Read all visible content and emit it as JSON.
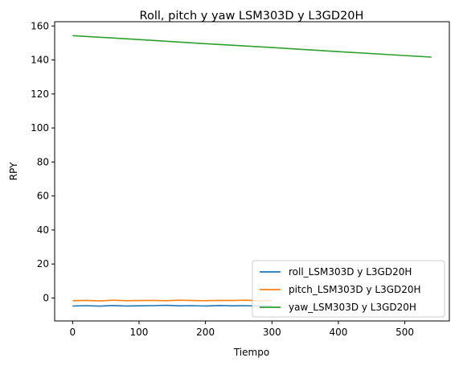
{
  "chart_data": {
    "type": "line",
    "title": "Roll, pitch y yaw LSM303D y L3GD20H",
    "xlabel": "Tiempo",
    "ylabel": "RPY",
    "xlim": [
      -27,
      567
    ],
    "ylim": [
      -13.5,
      162.5
    ],
    "xticks": [
      0,
      100,
      200,
      300,
      400,
      500
    ],
    "yticks": [
      0,
      20,
      40,
      60,
      80,
      100,
      120,
      140,
      160
    ],
    "legend_position": "lower right",
    "series": [
      {
        "name": "roll_LSM303D y L3GD20H",
        "color": "#1f77b4",
        "x": [
          0,
          20,
          40,
          60,
          80,
          100,
          120,
          140,
          160,
          180,
          200,
          220,
          240,
          260,
          280,
          300
        ],
        "values": [
          -4.7,
          -4.5,
          -4.8,
          -4.4,
          -4.7,
          -4.6,
          -4.5,
          -4.3,
          -4.6,
          -4.5,
          -4.7,
          -4.4,
          -4.6,
          -4.5,
          -4.7,
          -4.6
        ]
      },
      {
        "name": "pitch_LSM303D y L3GD20H",
        "color": "#ff7f0e",
        "x": [
          0,
          20,
          40,
          60,
          80,
          100,
          120,
          140,
          160,
          180,
          200,
          220,
          240,
          260,
          280,
          300
        ],
        "values": [
          -1.6,
          -1.4,
          -1.7,
          -1.3,
          -1.6,
          -1.5,
          -1.4,
          -1.6,
          -1.3,
          -1.5,
          -1.6,
          -1.4,
          -1.5,
          -1.3,
          -1.6,
          -1.5
        ]
      },
      {
        "name": "yaw_LSM303D y L3GD20H",
        "color": "#2ca02c",
        "x": [
          0,
          100,
          200,
          300,
          400,
          540
        ],
        "values": [
          154.3,
          152.0,
          149.6,
          147.3,
          144.9,
          141.7
        ]
      }
    ]
  }
}
